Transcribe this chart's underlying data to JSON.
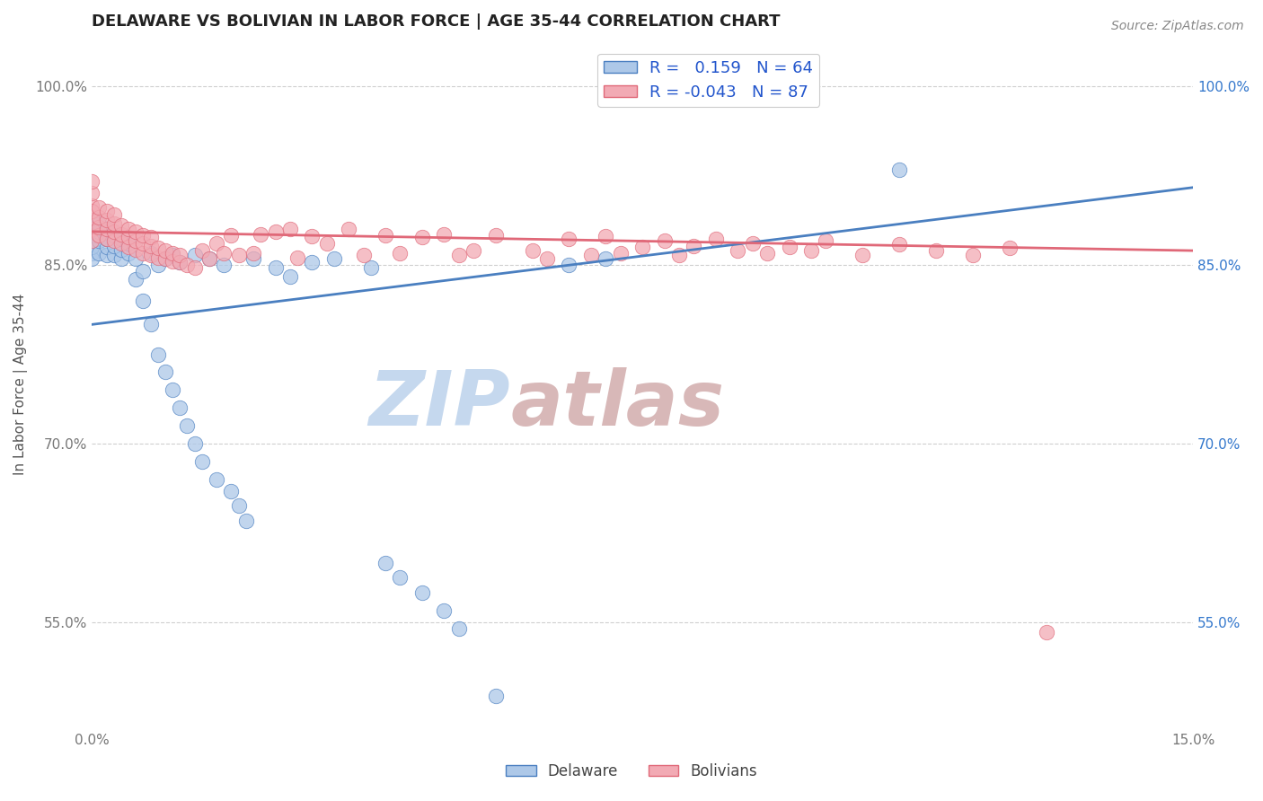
{
  "title": "DELAWARE VS BOLIVIAN IN LABOR FORCE | AGE 35-44 CORRELATION CHART",
  "source_text": "Source: ZipAtlas.com",
  "ylabel": "In Labor Force | Age 35-44",
  "xlim": [
    0.0,
    0.15
  ],
  "ylim": [
    0.46,
    1.04
  ],
  "ytick_values": [
    0.55,
    0.7,
    0.85,
    1.0
  ],
  "xtick_values": [
    0.0,
    0.15
  ],
  "legend_r_delaware": "0.159",
  "legend_n_delaware": "64",
  "legend_r_bolivian": "-0.043",
  "legend_n_bolivian": "87",
  "delaware_color": "#adc8e8",
  "bolivian_color": "#f2aab4",
  "trendline_delaware_color": "#4a7fc0",
  "trendline_bolivian_color": "#e06878",
  "watermark_zip": "ZIP",
  "watermark_atlas": "atlas",
  "watermark_color_zip": "#c5d8ee",
  "watermark_color_atlas": "#d8b8b8",
  "background_color": "#ffffff",
  "trendline_delaware": [
    [
      0.0,
      0.8
    ],
    [
      0.15,
      0.915
    ]
  ],
  "trendline_bolivian": [
    [
      0.0,
      0.878
    ],
    [
      0.15,
      0.862
    ]
  ],
  "delaware_points": [
    [
      0.0,
      0.86
    ],
    [
      0.0,
      0.87
    ],
    [
      0.0,
      0.88
    ],
    [
      0.0,
      0.89
    ],
    [
      0.0,
      0.855
    ],
    [
      0.0,
      0.865
    ],
    [
      0.0,
      0.875
    ],
    [
      0.001,
      0.86
    ],
    [
      0.001,
      0.87
    ],
    [
      0.001,
      0.878
    ],
    [
      0.001,
      0.885
    ],
    [
      0.002,
      0.858
    ],
    [
      0.002,
      0.865
    ],
    [
      0.002,
      0.872
    ],
    [
      0.002,
      0.88
    ],
    [
      0.003,
      0.858
    ],
    [
      0.003,
      0.866
    ],
    [
      0.003,
      0.875
    ],
    [
      0.004,
      0.855
    ],
    [
      0.004,
      0.863
    ],
    [
      0.004,
      0.872
    ],
    [
      0.005,
      0.86
    ],
    [
      0.005,
      0.868
    ],
    [
      0.006,
      0.855
    ],
    [
      0.006,
      0.838
    ],
    [
      0.007,
      0.845
    ],
    [
      0.007,
      0.82
    ],
    [
      0.008,
      0.86
    ],
    [
      0.008,
      0.8
    ],
    [
      0.009,
      0.85
    ],
    [
      0.009,
      0.775
    ],
    [
      0.01,
      0.855
    ],
    [
      0.01,
      0.76
    ],
    [
      0.011,
      0.858
    ],
    [
      0.011,
      0.745
    ],
    [
      0.012,
      0.852
    ],
    [
      0.012,
      0.73
    ],
    [
      0.013,
      0.715
    ],
    [
      0.014,
      0.858
    ],
    [
      0.014,
      0.7
    ],
    [
      0.015,
      0.685
    ],
    [
      0.016,
      0.855
    ],
    [
      0.017,
      0.67
    ],
    [
      0.018,
      0.85
    ],
    [
      0.019,
      0.66
    ],
    [
      0.02,
      0.648
    ],
    [
      0.021,
      0.635
    ],
    [
      0.022,
      0.855
    ],
    [
      0.025,
      0.848
    ],
    [
      0.027,
      0.84
    ],
    [
      0.03,
      0.852
    ],
    [
      0.033,
      0.855
    ],
    [
      0.038,
      0.848
    ],
    [
      0.04,
      0.6
    ],
    [
      0.042,
      0.588
    ],
    [
      0.045,
      0.575
    ],
    [
      0.048,
      0.56
    ],
    [
      0.05,
      0.545
    ],
    [
      0.055,
      0.488
    ],
    [
      0.065,
      0.85
    ],
    [
      0.07,
      0.855
    ],
    [
      0.11,
      0.93
    ]
  ],
  "bolivian_points": [
    [
      0.0,
      0.88
    ],
    [
      0.0,
      0.89
    ],
    [
      0.0,
      0.9
    ],
    [
      0.0,
      0.91
    ],
    [
      0.0,
      0.92
    ],
    [
      0.0,
      0.87
    ],
    [
      0.0,
      0.895
    ],
    [
      0.001,
      0.875
    ],
    [
      0.001,
      0.882
    ],
    [
      0.001,
      0.89
    ],
    [
      0.001,
      0.898
    ],
    [
      0.002,
      0.872
    ],
    [
      0.002,
      0.88
    ],
    [
      0.002,
      0.888
    ],
    [
      0.002,
      0.895
    ],
    [
      0.003,
      0.87
    ],
    [
      0.003,
      0.878
    ],
    [
      0.003,
      0.885
    ],
    [
      0.003,
      0.892
    ],
    [
      0.004,
      0.868
    ],
    [
      0.004,
      0.876
    ],
    [
      0.004,
      0.883
    ],
    [
      0.005,
      0.865
    ],
    [
      0.005,
      0.873
    ],
    [
      0.005,
      0.88
    ],
    [
      0.006,
      0.863
    ],
    [
      0.006,
      0.87
    ],
    [
      0.006,
      0.878
    ],
    [
      0.007,
      0.86
    ],
    [
      0.007,
      0.868
    ],
    [
      0.007,
      0.875
    ],
    [
      0.008,
      0.858
    ],
    [
      0.008,
      0.866
    ],
    [
      0.008,
      0.873
    ],
    [
      0.009,
      0.856
    ],
    [
      0.009,
      0.864
    ],
    [
      0.01,
      0.855
    ],
    [
      0.01,
      0.862
    ],
    [
      0.011,
      0.853
    ],
    [
      0.011,
      0.86
    ],
    [
      0.012,
      0.852
    ],
    [
      0.012,
      0.858
    ],
    [
      0.013,
      0.85
    ],
    [
      0.014,
      0.848
    ],
    [
      0.015,
      0.862
    ],
    [
      0.016,
      0.855
    ],
    [
      0.017,
      0.868
    ],
    [
      0.018,
      0.86
    ],
    [
      0.019,
      0.875
    ],
    [
      0.02,
      0.858
    ],
    [
      0.022,
      0.86
    ],
    [
      0.023,
      0.876
    ],
    [
      0.025,
      0.878
    ],
    [
      0.027,
      0.88
    ],
    [
      0.028,
      0.856
    ],
    [
      0.03,
      0.874
    ],
    [
      0.032,
      0.868
    ],
    [
      0.035,
      0.88
    ],
    [
      0.037,
      0.858
    ],
    [
      0.04,
      0.875
    ],
    [
      0.042,
      0.86
    ],
    [
      0.045,
      0.873
    ],
    [
      0.048,
      0.876
    ],
    [
      0.05,
      0.858
    ],
    [
      0.052,
      0.862
    ],
    [
      0.055,
      0.875
    ],
    [
      0.06,
      0.862
    ],
    [
      0.062,
      0.855
    ],
    [
      0.065,
      0.872
    ],
    [
      0.068,
      0.858
    ],
    [
      0.07,
      0.874
    ],
    [
      0.072,
      0.86
    ],
    [
      0.075,
      0.865
    ],
    [
      0.078,
      0.87
    ],
    [
      0.08,
      0.858
    ],
    [
      0.082,
      0.866
    ],
    [
      0.085,
      0.872
    ],
    [
      0.088,
      0.862
    ],
    [
      0.09,
      0.868
    ],
    [
      0.092,
      0.86
    ],
    [
      0.095,
      0.865
    ],
    [
      0.098,
      0.862
    ],
    [
      0.1,
      0.87
    ],
    [
      0.105,
      0.858
    ],
    [
      0.11,
      0.867
    ],
    [
      0.115,
      0.862
    ],
    [
      0.12,
      0.858
    ],
    [
      0.125,
      0.864
    ],
    [
      0.13,
      0.542
    ]
  ]
}
